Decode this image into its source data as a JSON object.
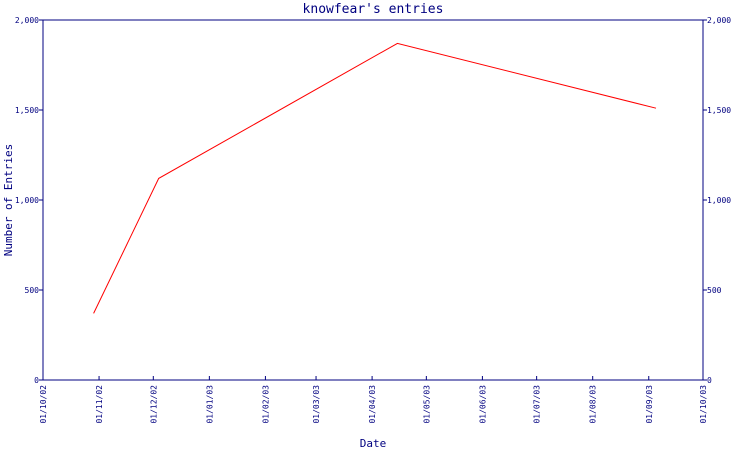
{
  "chart_data": {
    "type": "line",
    "title": "knowfear's entries",
    "xlabel": "Date",
    "ylabel": "Number of Entries",
    "x_tick_labels": [
      "01/10/02",
      "01/11/02",
      "01/12/02",
      "01/01/03",
      "01/02/03",
      "01/03/03",
      "01/04/03",
      "01/05/03",
      "01/06/03",
      "01/07/03",
      "01/08/03",
      "01/09/03",
      "01/10/03"
    ],
    "y_tick_labels": [
      "0",
      "500",
      "1,000",
      "1,500",
      "2,000"
    ],
    "ylim": [
      0,
      2000
    ],
    "grid": false,
    "series": [
      {
        "color": "#ff0000",
        "points": [
          {
            "x": "2002-10-29",
            "y": 370
          },
          {
            "x": "2002-12-04",
            "y": 1120
          },
          {
            "x": "2003-04-15",
            "y": 1870
          },
          {
            "x": "2003-09-05",
            "y": 1510
          }
        ]
      }
    ]
  }
}
